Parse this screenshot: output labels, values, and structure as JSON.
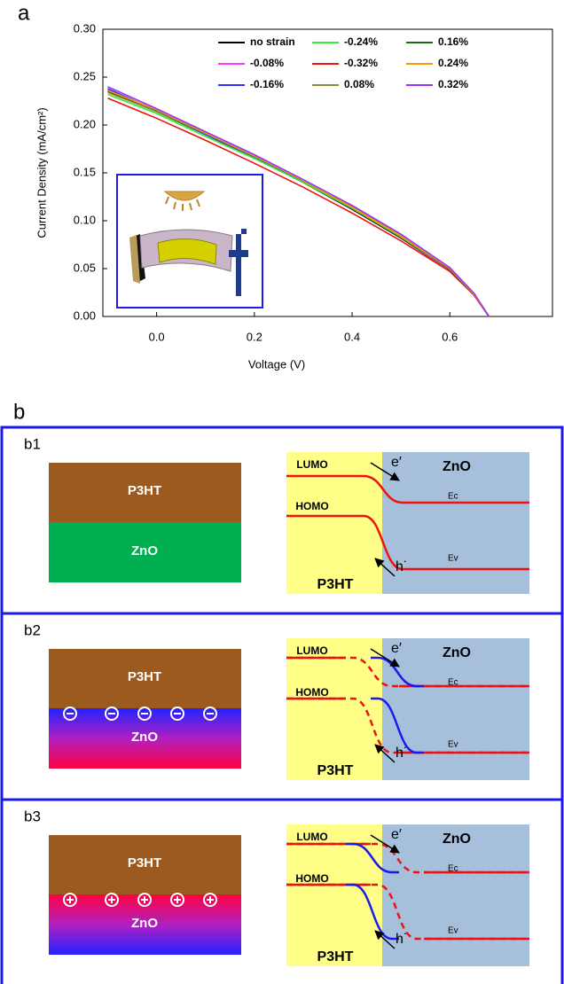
{
  "chart_data": {
    "type": "line",
    "panel_label": "a",
    "x_label": "Voltage (V)",
    "y_label": "Current Density (mA/cm²)",
    "x": [
      -0.1,
      0,
      0.1,
      0.2,
      0.3,
      0.4,
      0.5,
      0.6,
      0.65,
      0.68
    ],
    "xlim": [
      -0.11,
      0.81
    ],
    "ylim": [
      0,
      0.3
    ],
    "xticks": [
      {
        "value": 0,
        "label": "0.0"
      },
      {
        "value": 0.2,
        "label": "0.2"
      },
      {
        "value": 0.4,
        "label": "0.4"
      },
      {
        "value": 0.6,
        "label": "0.6"
      }
    ],
    "yticks": [
      {
        "value": 0,
        "label": "0.00"
      },
      {
        "value": 0.05,
        "label": "0.05"
      },
      {
        "value": 0.1,
        "label": "0.10"
      },
      {
        "value": 0.15,
        "label": "0.15"
      },
      {
        "value": 0.2,
        "label": "0.20"
      },
      {
        "value": 0.25,
        "label": "0.25"
      },
      {
        "value": 0.3,
        "label": "0.30"
      }
    ],
    "series": [
      {
        "name": "no strain",
        "color": "#000000",
        "values": [
          0.235,
          0.214,
          0.19,
          0.166,
          0.14,
          0.112,
          0.082,
          0.048,
          0.022,
          0
        ]
      },
      {
        "name": "-0.08%",
        "color": "#ff33ff",
        "values": [
          0.237,
          0.215,
          0.191,
          0.167,
          0.141,
          0.113,
          0.083,
          0.048,
          0.022,
          0
        ]
      },
      {
        "name": "-0.16%",
        "color": "#3333ff",
        "values": [
          0.238,
          0.215,
          0.19,
          0.166,
          0.141,
          0.114,
          0.085,
          0.05,
          0.023,
          0
        ]
      },
      {
        "name": "-0.24%",
        "color": "#33ee33",
        "values": [
          0.232,
          0.212,
          0.188,
          0.165,
          0.14,
          0.113,
          0.083,
          0.049,
          0.023,
          0
        ]
      },
      {
        "name": "-0.32%",
        "color": "#ee1111",
        "values": [
          0.228,
          0.207,
          0.184,
          0.16,
          0.135,
          0.108,
          0.079,
          0.047,
          0.022,
          0
        ]
      },
      {
        "name": "0.08%",
        "color": "#8b8b3a",
        "values": [
          0.234,
          0.214,
          0.191,
          0.167,
          0.142,
          0.115,
          0.085,
          0.05,
          0.023,
          0
        ]
      },
      {
        "name": "0.16%",
        "color": "#1a6b1a",
        "values": [
          0.236,
          0.216,
          0.192,
          0.168,
          0.142,
          0.114,
          0.084,
          0.049,
          0.023,
          0
        ]
      },
      {
        "name": "0.24%",
        "color": "#ff9900",
        "values": [
          0.236,
          0.216,
          0.192,
          0.168,
          0.142,
          0.114,
          0.084,
          0.05,
          0.023,
          0
        ]
      },
      {
        "name": "0.32%",
        "color": "#9933ff",
        "values": [
          0.24,
          0.217,
          0.193,
          0.169,
          0.143,
          0.116,
          0.086,
          0.051,
          0.024,
          0
        ]
      }
    ]
  },
  "panel_b": {
    "label": "b",
    "panels": [
      {
        "id": "b1",
        "layer_top": "P3HT",
        "layer_bottom": "ZnO",
        "lumo": "LUMO",
        "homo": "HOMO",
        "electron": "e′",
        "hole": "h˙",
        "donor": "P3HT",
        "acceptor": "ZnO",
        "ec": "Ec",
        "ev": "Ev"
      },
      {
        "id": "b2",
        "layer_top": "P3HT",
        "layer_bottom": "ZnO",
        "lumo": "LUMO",
        "homo": "HOMO",
        "electron": "e′",
        "hole": "h˙",
        "donor": "P3HT",
        "acceptor": "ZnO",
        "ec": "Ec",
        "ev": "Ev"
      },
      {
        "id": "b3",
        "layer_top": "P3HT",
        "layer_bottom": "ZnO",
        "lumo": "LUMO",
        "homo": "HOMO",
        "electron": "e′",
        "hole": "h˙",
        "donor": "P3HT",
        "acceptor": "ZnO",
        "ec": "Ec",
        "ev": "Ev"
      }
    ]
  }
}
